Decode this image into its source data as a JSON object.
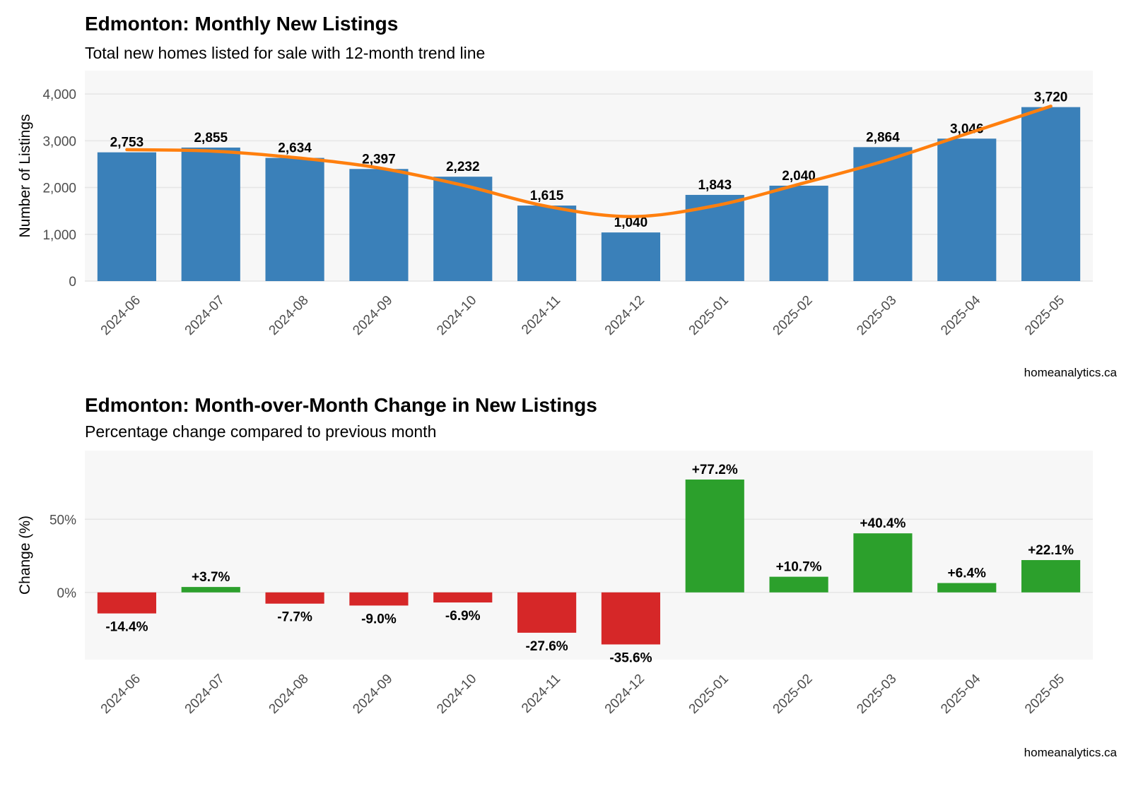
{
  "chart_data": [
    {
      "type": "bar",
      "title": "Edmonton: Monthly New Listings",
      "subtitle": "Total new homes listed for sale with 12-month trend line",
      "caption": "homeanalytics.ca",
      "xlabel": "",
      "ylabel": "Number of Listings",
      "categories": [
        "2024-06",
        "2024-07",
        "2024-08",
        "2024-09",
        "2024-10",
        "2024-11",
        "2024-12",
        "2025-01",
        "2025-02",
        "2025-03",
        "2025-04",
        "2025-05"
      ],
      "values": [
        2753,
        2855,
        2634,
        2397,
        2232,
        1615,
        1040,
        1843,
        2040,
        2864,
        3046,
        3720
      ],
      "value_labels": [
        "2,753",
        "2,855",
        "2,634",
        "2,397",
        "2,232",
        "1,615",
        "1,040",
        "1,843",
        "2,040",
        "2,864",
        "3,046",
        "3,720"
      ],
      "trend_values": [
        2810,
        2780,
        2640,
        2420,
        2050,
        1600,
        1380,
        1610,
        2070,
        2560,
        3150,
        3740
      ],
      "ylim": [
        0,
        4500
      ],
      "yticks": [
        0,
        1000,
        2000,
        3000,
        4000
      ],
      "ytick_labels": [
        "0",
        "1,000",
        "2,000",
        "3,000",
        "4,000"
      ],
      "grid": true,
      "colors": {
        "bar": "#3a80b9",
        "trend": "#ff7f0e",
        "panel": "#f7f7f7",
        "grid": "#e6e6e6"
      }
    },
    {
      "type": "bar",
      "title": "Edmonton: Month-over-Month Change in New Listings",
      "subtitle": "Percentage change compared to previous month",
      "caption": "homeanalytics.ca",
      "xlabel": "",
      "ylabel": "Change (%)",
      "categories": [
        "2024-06",
        "2024-07",
        "2024-08",
        "2024-09",
        "2024-10",
        "2024-11",
        "2024-12",
        "2025-01",
        "2025-02",
        "2025-03",
        "2025-04",
        "2025-05"
      ],
      "values": [
        -14.4,
        3.7,
        -7.7,
        -9.0,
        -6.9,
        -27.6,
        -35.6,
        77.2,
        10.7,
        40.4,
        6.4,
        22.1
      ],
      "value_labels": [
        "-14.4%",
        "+3.7%",
        "-7.7%",
        "-9.0%",
        "-6.9%",
        "-27.6%",
        "-35.6%",
        "+77.2%",
        "+10.7%",
        "+40.4%",
        "+6.4%",
        "+22.1%"
      ],
      "ylim": [
        -46,
        97
      ],
      "yticks": [
        0,
        50
      ],
      "ytick_labels": [
        "0%",
        "50%"
      ],
      "grid": true,
      "colors": {
        "positive": "#2ca02c",
        "negative": "#d62728",
        "panel": "#f7f7f7",
        "grid": "#e6e6e6"
      }
    }
  ]
}
